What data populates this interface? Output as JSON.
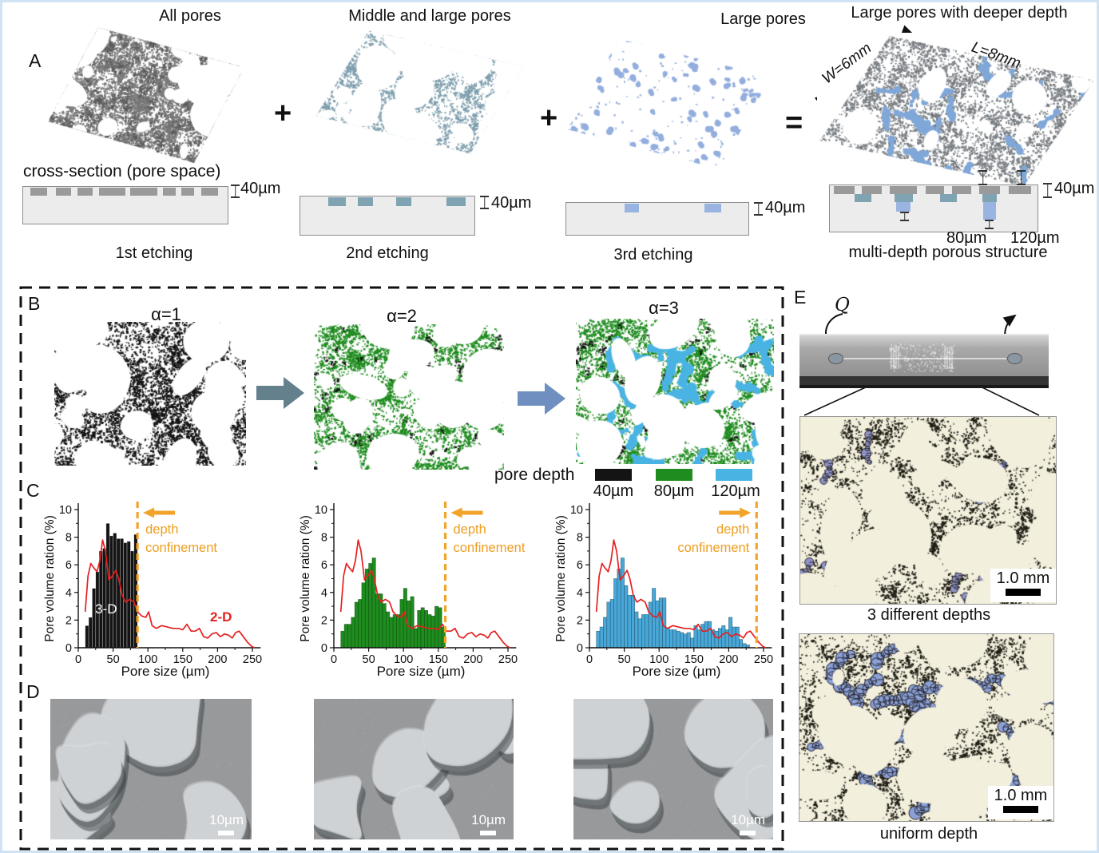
{
  "panelA": {
    "label": "A",
    "titles": [
      "All pores",
      "Middle and large pores",
      "Large pores",
      "Large pores with deeper depth"
    ],
    "operators": [
      "+",
      "+",
      "="
    ],
    "cross_section_label": "cross-section (pore space)",
    "depth_40": "40µm",
    "depth_80": "80µm",
    "depth_120": "120µm",
    "captions": [
      "1st etching",
      "2nd etching",
      "3rd etching",
      "multi-depth porous structure"
    ],
    "dim_width": "W=6mm",
    "dim_length": "L=8mm"
  },
  "panelB": {
    "label": "B",
    "alpha_labels": [
      "α=1",
      "α=2",
      "α=3"
    ],
    "legend_title": "pore depth",
    "legend_items": [
      {
        "label": "40µm",
        "color": "#141414"
      },
      {
        "label": "80µm",
        "color": "#1f8c1f"
      },
      {
        "label": "120µm",
        "color": "#49b4e4"
      }
    ]
  },
  "panelC": {
    "label": "C"
  },
  "chart_data": [
    {
      "type": "bar+line",
      "xlabel": "Pore size (µm)",
      "ylabel": "Pore volume ration (%)",
      "xlim": [
        0,
        255
      ],
      "ylim": [
        0,
        10
      ],
      "xticks": [
        0,
        50,
        100,
        150,
        200,
        250
      ],
      "yticks": [
        0,
        2,
        4,
        6,
        8,
        10
      ],
      "bar_color": "#141414",
      "bar_stroke": "rgba(255,255,255,0.5)",
      "bin_start": 10,
      "bin_width": 5,
      "bar_values": [
        1.6,
        2.2,
        4.3,
        5.5,
        7.0,
        7.2,
        9.0,
        8.1,
        8.3,
        7.9,
        7.9,
        7.6,
        7.7,
        7.0,
        8.2
      ],
      "line_color": "#e62020",
      "line_points": [
        [
          10,
          2.6
        ],
        [
          14,
          5.2
        ],
        [
          18,
          6.1
        ],
        [
          22,
          5.8
        ],
        [
          27,
          5.5
        ],
        [
          31,
          6.3
        ],
        [
          35,
          7.8
        ],
        [
          39,
          7.0
        ],
        [
          44,
          4.9
        ],
        [
          49,
          5.2
        ],
        [
          54,
          5.6
        ],
        [
          58,
          5.0
        ],
        [
          63,
          3.8
        ],
        [
          68,
          3.3
        ],
        [
          74,
          3.5
        ],
        [
          80,
          3.3
        ],
        [
          85,
          2.6
        ],
        [
          91,
          2.3
        ],
        [
          97,
          2.2
        ],
        [
          101,
          2.6
        ],
        [
          106,
          1.6
        ],
        [
          112,
          1.4
        ],
        [
          120,
          1.6
        ],
        [
          128,
          1.5
        ],
        [
          136,
          1.4
        ],
        [
          144,
          1.4
        ],
        [
          150,
          1.3
        ],
        [
          156,
          1.7
        ],
        [
          162,
          1.2
        ],
        [
          168,
          1.2
        ],
        [
          174,
          1.4
        ],
        [
          180,
          0.8
        ],
        [
          186,
          0.7
        ],
        [
          192,
          1.0
        ],
        [
          198,
          1.1
        ],
        [
          204,
          0.8
        ],
        [
          210,
          1.0
        ],
        [
          216,
          0.9
        ],
        [
          221,
          0.7
        ],
        [
          226,
          1.1
        ],
        [
          231,
          1.2
        ],
        [
          237,
          0.8
        ],
        [
          243,
          0.4
        ],
        [
          249,
          0.1
        ],
        [
          253,
          0.0
        ]
      ],
      "confinement_x": 85,
      "confinement_label": "depth confinement",
      "arrow_direction": "left",
      "bar_label": "3-D",
      "line_label": "2-D"
    },
    {
      "type": "bar+line",
      "xlabel": "Pore size (µm)",
      "ylabel": "Pore volume ration (%)",
      "xlim": [
        0,
        255
      ],
      "ylim": [
        0,
        10
      ],
      "xticks": [
        0,
        50,
        100,
        150,
        200,
        250
      ],
      "yticks": [
        0,
        2,
        4,
        6,
        8,
        10
      ],
      "bar_color": "#1f8c1f",
      "bar_stroke": "rgba(6,60,6,0.65)",
      "bin_start": 10,
      "bin_width": 5,
      "bar_values": [
        1.2,
        1.7,
        1.7,
        2.2,
        3.3,
        3.5,
        4.7,
        5.7,
        6.1,
        6.5,
        3.9,
        3.9,
        3.2,
        2.6,
        2.2,
        2.4,
        2.4,
        3.5,
        4.3,
        3.4,
        3.7,
        1.4,
        2.7,
        2.9,
        2.7,
        2.4,
        2.3,
        3.0,
        2.9,
        1.5
      ],
      "line_color": "#e62020",
      "line_points": [
        [
          10,
          2.6
        ],
        [
          14,
          5.2
        ],
        [
          18,
          6.1
        ],
        [
          22,
          5.8
        ],
        [
          27,
          5.5
        ],
        [
          31,
          6.3
        ],
        [
          35,
          7.8
        ],
        [
          39,
          7.0
        ],
        [
          44,
          4.9
        ],
        [
          49,
          5.2
        ],
        [
          54,
          5.6
        ],
        [
          58,
          5.0
        ],
        [
          63,
          3.8
        ],
        [
          68,
          3.3
        ],
        [
          74,
          3.5
        ],
        [
          80,
          3.3
        ],
        [
          85,
          2.6
        ],
        [
          91,
          2.3
        ],
        [
          97,
          2.2
        ],
        [
          101,
          2.6
        ],
        [
          106,
          1.6
        ],
        [
          112,
          1.4
        ],
        [
          120,
          1.6
        ],
        [
          128,
          1.5
        ],
        [
          136,
          1.4
        ],
        [
          144,
          1.4
        ],
        [
          150,
          1.3
        ],
        [
          156,
          1.7
        ],
        [
          162,
          1.2
        ],
        [
          168,
          1.2
        ],
        [
          174,
          1.4
        ],
        [
          180,
          0.8
        ],
        [
          186,
          0.7
        ],
        [
          192,
          1.0
        ],
        [
          198,
          1.1
        ],
        [
          204,
          0.8
        ],
        [
          210,
          1.0
        ],
        [
          216,
          0.9
        ],
        [
          221,
          0.7
        ],
        [
          226,
          1.1
        ],
        [
          231,
          1.2
        ],
        [
          237,
          0.8
        ],
        [
          243,
          0.4
        ],
        [
          249,
          0.1
        ],
        [
          253,
          0.0
        ]
      ],
      "confinement_x": 160,
      "confinement_label": "depth confinement",
      "arrow_direction": "left"
    },
    {
      "type": "bar+line",
      "xlabel": "Pore size (µm)",
      "ylabel": "Pore volume ration (%)",
      "xlim": [
        0,
        255
      ],
      "ylim": [
        0,
        10
      ],
      "xticks": [
        0,
        50,
        100,
        150,
        200,
        250
      ],
      "yticks": [
        0,
        2,
        4,
        6,
        8,
        10
      ],
      "bar_color": "#49a8d8",
      "bar_stroke": "rgba(24,72,96,0.75)",
      "bin_start": 10,
      "bin_width": 5,
      "bar_values": [
        1.2,
        1.5,
        2.2,
        3.3,
        3.5,
        5.0,
        5.7,
        6.5,
        4.5,
        3.8,
        3.8,
        2.6,
        2.1,
        2.4,
        2.4,
        3.3,
        4.3,
        3.4,
        3.6,
        3.6,
        1.4,
        1.3,
        1.3,
        1.2,
        1.1,
        1.0,
        1.1,
        0.7,
        1.6,
        1.3,
        1.7,
        1.9,
        1.9,
        1.3,
        1.2,
        1.4,
        1.6,
        1.3,
        2.2,
        1.5,
        1.5,
        0.6,
        0.3,
        0.2
      ],
      "line_color": "#e62020",
      "line_points": [
        [
          10,
          2.6
        ],
        [
          14,
          5.2
        ],
        [
          18,
          6.1
        ],
        [
          22,
          5.8
        ],
        [
          27,
          5.5
        ],
        [
          31,
          6.3
        ],
        [
          35,
          7.8
        ],
        [
          39,
          7.0
        ],
        [
          44,
          4.9
        ],
        [
          49,
          5.2
        ],
        [
          54,
          5.6
        ],
        [
          58,
          5.0
        ],
        [
          63,
          3.8
        ],
        [
          68,
          3.3
        ],
        [
          74,
          3.5
        ],
        [
          80,
          3.3
        ],
        [
          85,
          2.6
        ],
        [
          91,
          2.3
        ],
        [
          97,
          2.2
        ],
        [
          101,
          2.6
        ],
        [
          106,
          1.6
        ],
        [
          112,
          1.4
        ],
        [
          120,
          1.6
        ],
        [
          128,
          1.5
        ],
        [
          136,
          1.4
        ],
        [
          144,
          1.4
        ],
        [
          150,
          1.3
        ],
        [
          156,
          1.7
        ],
        [
          162,
          1.2
        ],
        [
          168,
          1.2
        ],
        [
          174,
          1.4
        ],
        [
          180,
          0.8
        ],
        [
          186,
          0.7
        ],
        [
          192,
          1.0
        ],
        [
          198,
          1.1
        ],
        [
          204,
          0.8
        ],
        [
          210,
          1.0
        ],
        [
          216,
          0.9
        ],
        [
          221,
          0.7
        ],
        [
          226,
          1.1
        ],
        [
          231,
          1.2
        ],
        [
          237,
          0.8
        ],
        [
          243,
          0.4
        ],
        [
          249,
          0.1
        ],
        [
          253,
          0.0
        ]
      ],
      "confinement_x": 240,
      "confinement_label": "depth confinement",
      "arrow_direction": "right"
    }
  ],
  "panelD": {
    "label": "D",
    "scale_label": "10µm"
  },
  "panelE": {
    "label": "E",
    "flow_label": "Q",
    "caption_top": "3 different depths",
    "caption_bottom": "uniform depth",
    "scale_label": "1.0 mm"
  }
}
